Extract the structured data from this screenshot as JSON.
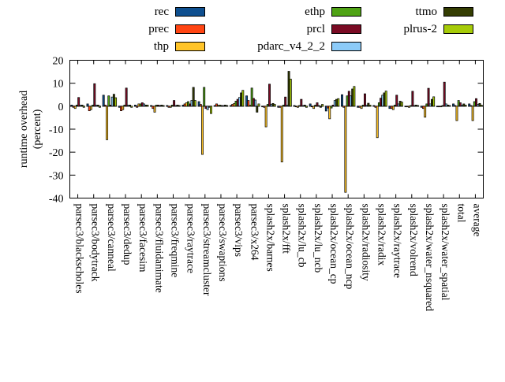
{
  "chart_data": {
    "type": "bar",
    "title": "",
    "xlabel": "",
    "ylabel": "runtime overhead (percent)",
    "ylabel_lines": [
      "runtime overhead",
      "(percent)"
    ],
    "ylim": [
      -40,
      20
    ],
    "yticks": [
      20,
      10,
      0,
      -10,
      -20,
      -30,
      -40
    ],
    "grid": false,
    "legend_position": "top",
    "legend_rows": [
      [
        "rec",
        "ethp",
        "ttmo"
      ],
      [
        "prec",
        "prcl",
        "plrus-2"
      ],
      [
        "thp",
        "pdarc_v4_2_2",
        ""
      ]
    ],
    "categories": [
      "parsec3/blackscholes",
      "parsec3/bodytrack",
      "parsec3/canneal",
      "parsec3/dedup",
      "parsec3/facesim",
      "parsec3/fluidanimate",
      "parsec3/freqmine",
      "parsec3/raytrace",
      "parsec3/streamcluster",
      "parsec3/swaptions",
      "parsec3/vips",
      "parsec3/x264",
      "splash2x/barnes",
      "splash2x/fft",
      "splash2x/lu_cb",
      "splash2x/lu_ncb",
      "splash2x/ocean_cp",
      "splash2x/ocean_ncp",
      "splash2x/radiosity",
      "splash2x/radix",
      "splash2x/raytrace",
      "splash2x/volrend",
      "splash2x/water_nsquared",
      "splash2x/water_spatial",
      "total",
      "average"
    ],
    "series": [
      {
        "name": "rec",
        "color": "#0e4f8f",
        "values": [
          0.5,
          1.0,
          4.8,
          -0.5,
          0.5,
          0.3,
          0.3,
          0.5,
          2.0,
          0.3,
          0.3,
          4.5,
          -0.3,
          -0.5,
          0.3,
          1.0,
          -2.1,
          5.0,
          -0.5,
          0.3,
          -1.0,
          -0.3,
          -0.5,
          -0.3,
          1.0,
          1.0
        ]
      },
      {
        "name": "prec",
        "color": "#ff4513",
        "values": [
          -0.5,
          -2.0,
          0.5,
          -2.0,
          -0.5,
          -1.0,
          -0.5,
          1.0,
          0.8,
          1.0,
          0.8,
          2.5,
          -0.5,
          -0.5,
          -0.3,
          -0.3,
          -0.8,
          -0.5,
          -0.5,
          -0.5,
          -1.0,
          -0.3,
          -1.0,
          -0.3,
          0.3,
          0.3
        ]
      },
      {
        "name": "thp",
        "color": "#ffc428",
        "values": [
          -1.0,
          -1.5,
          -14.6,
          -1.5,
          1.0,
          -2.6,
          -0.5,
          1.5,
          -21.0,
          0.5,
          1.2,
          0.5,
          -9.0,
          -24.3,
          -0.5,
          -1.0,
          -5.5,
          -37.5,
          -1.0,
          -13.7,
          -1.5,
          -0.5,
          -4.8,
          -0.3,
          -6.3,
          -6.3
        ]
      },
      {
        "name": "ethp",
        "color": "#4fa315",
        "values": [
          0.5,
          0.5,
          4.5,
          0.5,
          1.0,
          0.5,
          0.5,
          2.0,
          8.2,
          0.5,
          2.2,
          7.9,
          0.8,
          0.5,
          0.3,
          0.5,
          -0.8,
          4.5,
          0.5,
          1.5,
          0.5,
          0.3,
          1.0,
          0.3,
          2.5,
          2.0
        ]
      },
      {
        "name": "prcl",
        "color": "#7a0b24",
        "values": [
          3.8,
          9.8,
          0.5,
          7.9,
          1.5,
          0.5,
          2.5,
          1.0,
          -1.0,
          0.3,
          3.0,
          3.4,
          9.6,
          4.0,
          3.0,
          1.5,
          0.5,
          6.5,
          5.4,
          3.5,
          4.8,
          6.5,
          7.8,
          10.5,
          1.5,
          3.3
        ]
      },
      {
        "name": "pdarc_v4_2_2",
        "color": "#8ccbf8",
        "values": [
          0.5,
          0.5,
          4.0,
          0.5,
          1.0,
          0.3,
          0.3,
          2.5,
          -1.5,
          0.3,
          3.8,
          2.7,
          0.8,
          0.5,
          0.3,
          0.3,
          2.5,
          4.5,
          0.5,
          4.8,
          1.0,
          0.3,
          1.0,
          1.0,
          0.5,
          0.8
        ]
      },
      {
        "name": "ttmo",
        "color": "#343d02",
        "values": [
          0.5,
          0.5,
          5.2,
          0.5,
          0.5,
          0.5,
          0.5,
          8.2,
          -0.5,
          0.5,
          5.8,
          -2.6,
          1.2,
          15.2,
          0.5,
          -0.5,
          3.0,
          7.5,
          1.3,
          5.8,
          2.2,
          0.5,
          3.0,
          0.5,
          1.0,
          1.2
        ]
      },
      {
        "name": "plrus-2",
        "color": "#a6cb08",
        "values": [
          -0.5,
          -0.5,
          3.7,
          -0.5,
          0.5,
          0.3,
          0.3,
          2.5,
          -3.2,
          0.3,
          6.9,
          1.0,
          0.8,
          11.8,
          -0.5,
          0.8,
          3.3,
          8.6,
          0.5,
          6.6,
          1.8,
          0.3,
          4.1,
          0.3,
          0.5,
          0.5
        ]
      }
    ]
  }
}
